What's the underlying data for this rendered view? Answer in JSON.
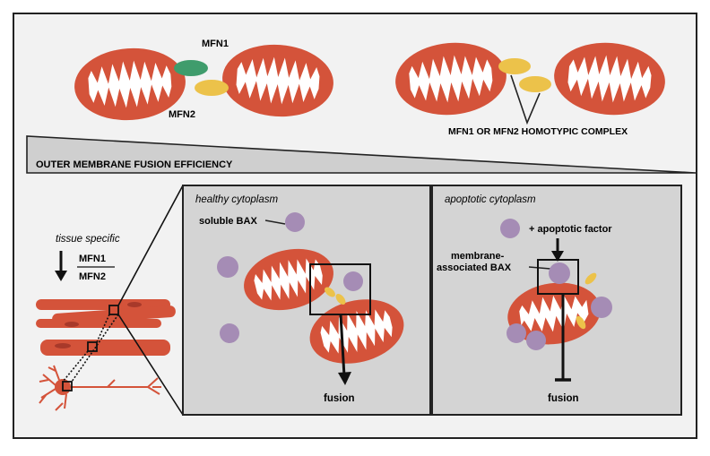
{
  "top": {
    "mfn1_label": "MFN1",
    "mfn2_label": "MFN2",
    "homotypic_label": "MFN1 OR MFN2 HOMOTYPIC COMPLEX"
  },
  "efficiency_label": "OUTER MEMBRANE FUSION EFFICIENCY",
  "tissue": {
    "label": "tissue specific",
    "numerator": "MFN1",
    "denominator": "MFN2"
  },
  "healthy": {
    "title": "healthy cytoplasm",
    "bax_label": "soluble BAX",
    "result": "fusion"
  },
  "apoptotic": {
    "title": "apoptotic cytoplasm",
    "factor_label": "+ apoptotic factor",
    "bax_label_line1": "membrane-",
    "bax_label_line2": "associated BAX",
    "result": "fusion"
  },
  "colors": {
    "mito": "#d4533a",
    "mfn1": "#3f9c6c",
    "mfn2": "#ecc24a",
    "bax": "#a58cb5",
    "panel_bg": "#d4d4d4",
    "page_bg": "#f2f2f2"
  }
}
